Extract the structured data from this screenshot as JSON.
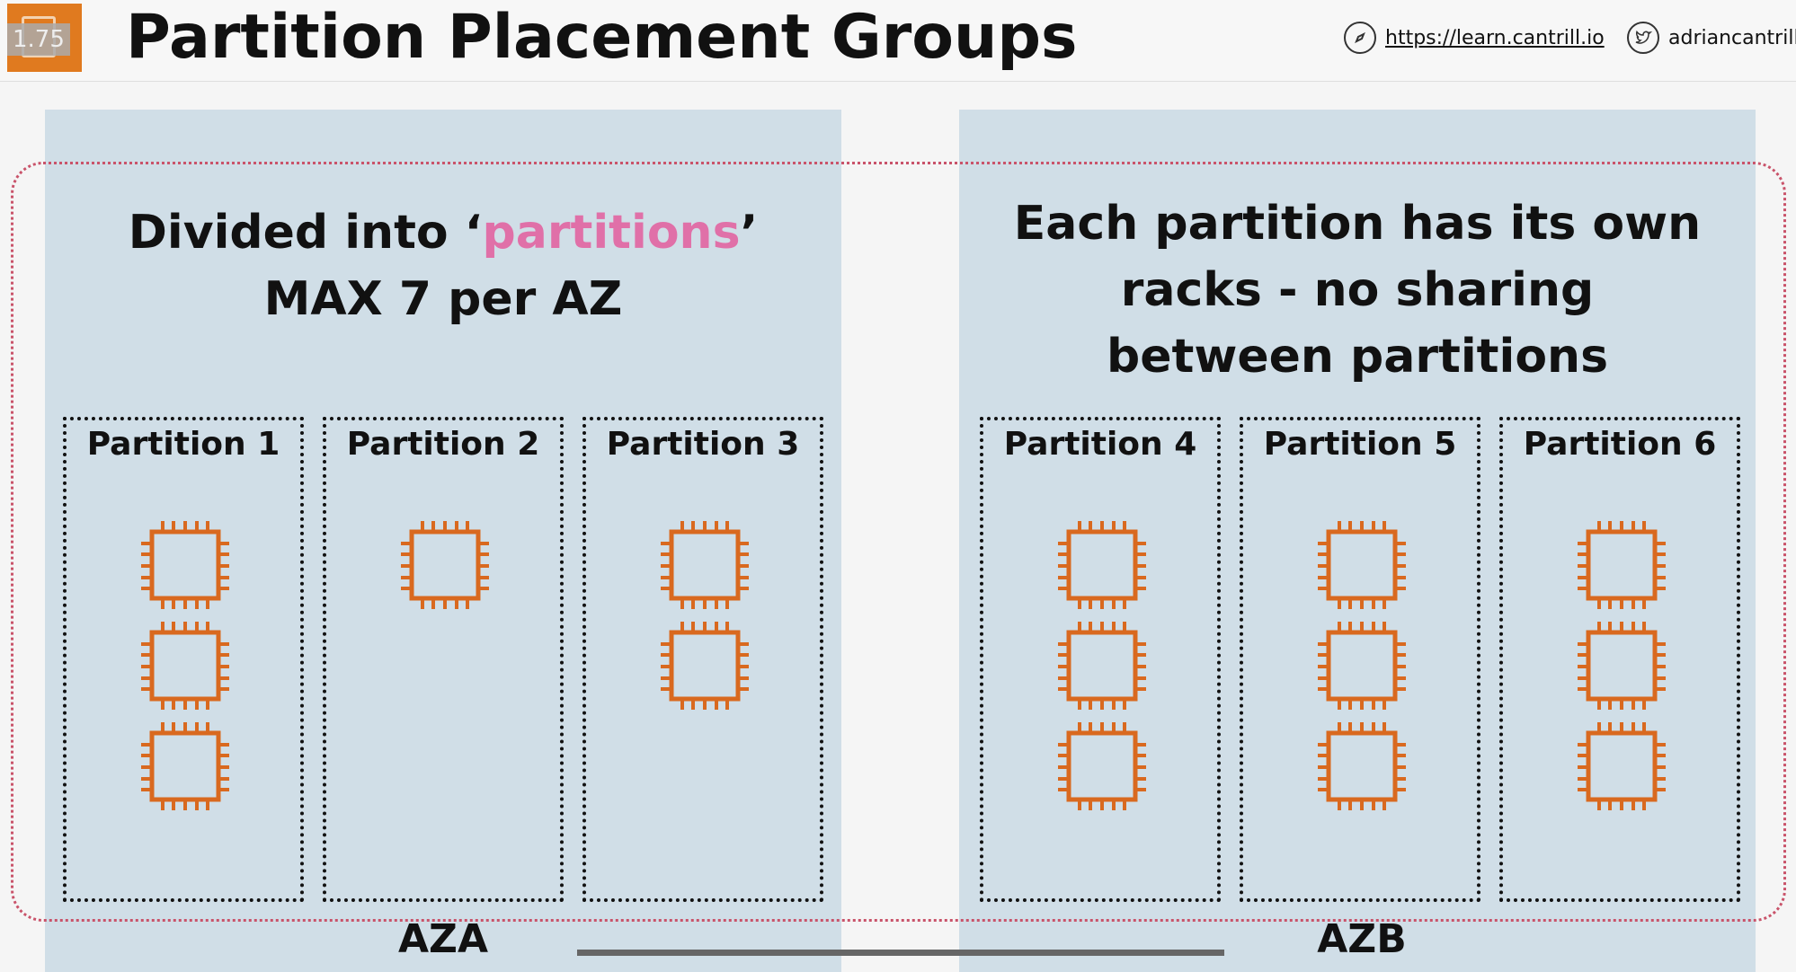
{
  "header": {
    "title": "Partition Placement Groups",
    "logo_overlay": "1.75",
    "website": "https://learn.cantrill.io",
    "twitter": "adriancantrill"
  },
  "zones": [
    {
      "label": "AZA",
      "heading_line1_pre": "Divided into ‘",
      "heading_highlight": "partitions",
      "heading_line1_post": "’",
      "heading_line2": "MAX 7 per AZ",
      "partitions": [
        {
          "label": "Partition 1",
          "instances": 3
        },
        {
          "label": "Partition 2",
          "instances": 1
        },
        {
          "label": "Partition 3",
          "instances": 2
        }
      ]
    },
    {
      "label": "AZB",
      "heading_lines": [
        "Each partition has its own",
        "racks - no sharing",
        "between partitions"
      ],
      "partitions": [
        {
          "label": "Partition 4",
          "instances": 3
        },
        {
          "label": "Partition 5",
          "instances": 3
        },
        {
          "label": "Partition 6",
          "instances": 3
        }
      ]
    }
  ],
  "colors": {
    "instance": "#d9691f",
    "highlight": "#e070a8",
    "placement_group_border": "#c9536a",
    "zone_background": "#d0dee7"
  },
  "icons": {
    "instance": "ec2-instance-icon",
    "link": "compass-icon",
    "twitter": "twitter-icon"
  }
}
